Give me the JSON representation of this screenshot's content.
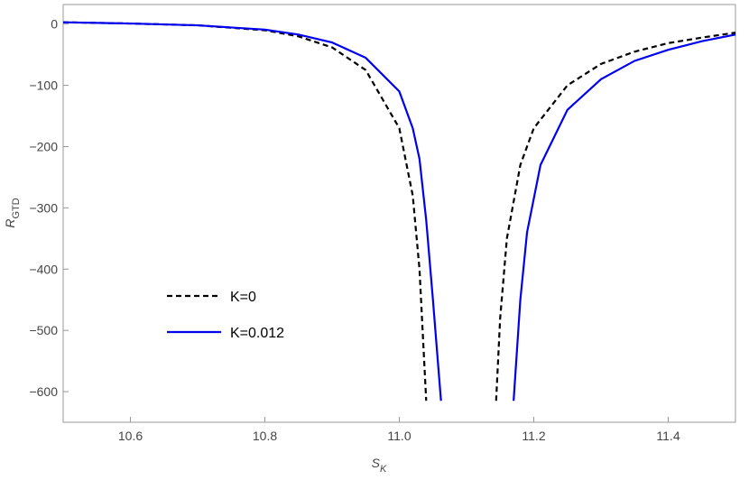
{
  "chart_data": {
    "type": "line",
    "x_label": {
      "main": "S",
      "sub": "K"
    },
    "y_label": {
      "main": "R",
      "sub": "GTD"
    },
    "xlim": [
      10.5,
      11.5
    ],
    "ylim": [
      -650,
      32
    ],
    "xticks": [
      10.6,
      10.8,
      {
        "value": 11,
        "label": "11.0"
      },
      11.2,
      11.4
    ],
    "yticks": [
      0,
      {
        "value": -100,
        "label": "−100"
      },
      {
        "value": -200,
        "label": "−200"
      },
      {
        "value": -300,
        "label": "−300"
      },
      {
        "value": -400,
        "label": "−400"
      },
      {
        "value": -500,
        "label": "−500"
      },
      {
        "value": -600,
        "label": "−600"
      }
    ],
    "legend": "lower-left",
    "series": [
      {
        "name": "K=0",
        "color": "#000000",
        "dash": true,
        "x": [
          10.5,
          10.6,
          10.7,
          10.8,
          10.85,
          10.9,
          10.95,
          11.0,
          11.02,
          11.03,
          11.04,
          null,
          11.144,
          11.15,
          11.16,
          11.18,
          11.2,
          11.25,
          11.3,
          11.35,
          11.4,
          11.45,
          11.5
        ],
        "values": [
          3,
          1,
          -2,
          -10,
          -20,
          -38,
          -75,
          -170,
          -280,
          -400,
          -615,
          null,
          -615,
          -480,
          -350,
          -230,
          -170,
          -100,
          -65,
          -45,
          -31,
          -22,
          -14
        ]
      },
      {
        "name": "K=0.012",
        "color": "#0000ee",
        "dash": false,
        "x": [
          10.5,
          10.6,
          10.7,
          10.8,
          10.85,
          10.9,
          10.95,
          11.0,
          11.02,
          11.03,
          11.04,
          11.05,
          11.062,
          null,
          11.17,
          11.18,
          11.19,
          11.21,
          11.25,
          11.3,
          11.35,
          11.4,
          11.45,
          11.5
        ],
        "values": [
          3,
          1,
          -2,
          -9,
          -17,
          -30,
          -55,
          -110,
          -170,
          -220,
          -320,
          -450,
          -615,
          null,
          -615,
          -450,
          -340,
          -230,
          -140,
          -90,
          -60,
          -42,
          -28,
          -17
        ]
      }
    ]
  }
}
